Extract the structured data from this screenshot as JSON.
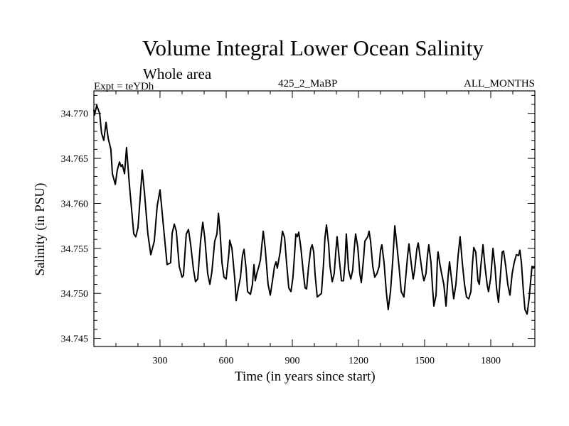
{
  "chart_data": {
    "type": "line",
    "title": "Volume Integral Lower Ocean Salinity",
    "subtitle": "Whole area",
    "annotations": {
      "left": "Expt = teYDh",
      "center": "425_2_MaBP",
      "right": "ALL_MONTHS"
    },
    "xlabel": "Time (in years since start)",
    "ylabel": "Salinity (in PSU)",
    "xlim": [
      0,
      2000
    ],
    "ylim": [
      34.7441,
      34.7725
    ],
    "xticks": [
      300,
      600,
      900,
      1200,
      1500,
      1800
    ],
    "xtick_labels": [
      "300",
      "600",
      "900",
      "1200",
      "1500",
      "1800"
    ],
    "yticks": [
      34.745,
      34.75,
      34.755,
      34.76,
      34.765,
      34.77
    ],
    "ytick_labels": [
      "34.745",
      "34.750",
      "34.755",
      "34.760",
      "34.765",
      "34.770"
    ],
    "grid": false,
    "legend": "none",
    "series": [
      {
        "name": "Salinity",
        "color": "#000000",
        "x": [
          0,
          3,
          13,
          26,
          35,
          45,
          55,
          65,
          77,
          84,
          97,
          106,
          116,
          123,
          129,
          139,
          148,
          161,
          181,
          190,
          200,
          219,
          229,
          245,
          258,
          274,
          287,
          300,
          316,
          332,
          348,
          355,
          365,
          374,
          387,
          400,
          406,
          419,
          429,
          439,
          452,
          461,
          471,
          484,
          494,
          503,
          516,
          526,
          535,
          548,
          558,
          565,
          571,
          581,
          590,
          600,
          613,
          616,
          626,
          639,
          645,
          655,
          665,
          674,
          681,
          690,
          697,
          710,
          719,
          726,
          732,
          739,
          748,
          755,
          768,
          777,
          790,
          800,
          810,
          819,
          826,
          832,
          839,
          845,
          855,
          865,
          874,
          884,
          894,
          903,
          910,
          916,
          923,
          929,
          939,
          952,
          958,
          965,
          974,
          984,
          990,
          997,
          1003,
          1013,
          1023,
          1032,
          1042,
          1048,
          1055,
          1065,
          1071,
          1081,
          1090,
          1097,
          1103,
          1113,
          1123,
          1132,
          1139,
          1145,
          1155,
          1165,
          1174,
          1181,
          1187,
          1197,
          1206,
          1213,
          1223,
          1229,
          1242,
          1248,
          1255,
          1265,
          1274,
          1284,
          1294,
          1300,
          1306,
          1316,
          1326,
          1335,
          1345,
          1355,
          1365,
          1374,
          1384,
          1394,
          1406,
          1413,
          1423,
          1429,
          1439,
          1448,
          1455,
          1465,
          1471,
          1481,
          1490,
          1497,
          1506,
          1513,
          1519,
          1529,
          1535,
          1542,
          1552,
          1558,
          1561,
          1568,
          1577,
          1587,
          1597,
          1606,
          1613,
          1623,
          1632,
          1642,
          1652,
          1661,
          1671,
          1681,
          1690,
          1700,
          1710,
          1716,
          1723,
          1732,
          1742,
          1748,
          1755,
          1765,
          1774,
          1784,
          1790,
          1800,
          1810,
          1819,
          1826,
          1835,
          1842,
          1852,
          1858,
          1868,
          1877,
          1887,
          1897,
          1906,
          1916,
          1926,
          1932,
          1939,
          1948,
          1955,
          1965,
          1974,
          1981,
          1987,
          1994,
          2000
        ],
        "y": [
          34.7704,
          34.7698,
          34.7709,
          34.77,
          34.7678,
          34.767,
          34.769,
          34.7672,
          34.766,
          34.7633,
          34.7621,
          34.7637,
          34.7646,
          34.7641,
          34.7643,
          34.7633,
          34.7662,
          34.7621,
          34.7566,
          34.7563,
          34.7573,
          34.7637,
          34.7613,
          34.7566,
          34.7543,
          34.7558,
          34.7597,
          34.7615,
          34.7573,
          34.7532,
          34.7534,
          34.7567,
          34.7577,
          34.7569,
          34.753,
          34.7518,
          34.752,
          34.7566,
          34.7571,
          34.7554,
          34.7526,
          34.7513,
          34.7516,
          34.7558,
          34.7579,
          34.7562,
          34.7522,
          34.751,
          34.7524,
          34.7558,
          34.7566,
          34.7589,
          34.7573,
          34.7534,
          34.7518,
          34.7516,
          34.7546,
          34.7559,
          34.755,
          34.7516,
          34.7492,
          34.7506,
          34.7518,
          34.7542,
          34.7549,
          34.7528,
          34.7502,
          34.7499,
          34.751,
          34.7532,
          34.7514,
          34.7522,
          34.753,
          34.7537,
          34.7569,
          34.755,
          34.751,
          34.7498,
          34.7514,
          34.753,
          34.7535,
          34.7528,
          34.7538,
          34.7546,
          34.7569,
          34.7562,
          34.7534,
          34.7506,
          34.7502,
          34.7518,
          34.7543,
          34.7566,
          34.7563,
          34.7568,
          34.755,
          34.7518,
          34.7506,
          34.7505,
          34.753,
          34.755,
          34.7554,
          34.7546,
          34.7522,
          34.7496,
          34.7498,
          34.75,
          34.7534,
          34.7562,
          34.7576,
          34.7554,
          34.753,
          34.7513,
          34.7522,
          34.7546,
          34.7563,
          34.7538,
          34.7514,
          34.7514,
          34.7534,
          34.7566,
          34.7526,
          34.7516,
          34.7526,
          34.755,
          34.7566,
          34.7551,
          34.7522,
          34.7512,
          34.7538,
          34.7558,
          34.7563,
          34.7569,
          34.7558,
          34.753,
          34.7518,
          34.7522,
          34.753,
          34.7548,
          34.7554,
          34.7534,
          34.7502,
          34.7482,
          34.7502,
          34.7534,
          34.7575,
          34.7554,
          34.753,
          34.7502,
          34.7496,
          34.7514,
          34.7542,
          34.7555,
          34.7534,
          34.7516,
          34.7526,
          34.755,
          34.7556,
          34.7538,
          34.7522,
          34.7514,
          34.7522,
          34.7542,
          34.7554,
          34.7534,
          34.751,
          34.7486,
          34.7498,
          34.7538,
          34.7546,
          34.7534,
          34.7522,
          34.751,
          34.7486,
          34.7518,
          34.7535,
          34.7514,
          34.7494,
          34.751,
          34.7542,
          34.7563,
          34.7534,
          34.751,
          34.7496,
          34.7494,
          34.7502,
          34.753,
          34.7551,
          34.7546,
          34.7514,
          34.751,
          34.753,
          34.7554,
          34.753,
          34.7509,
          34.7502,
          34.7518,
          34.755,
          34.753,
          34.7506,
          34.749,
          34.7514,
          34.7546,
          34.7547,
          34.753,
          34.751,
          34.7498,
          34.7522,
          34.7534,
          34.7543,
          34.7542,
          34.7548,
          34.7534,
          34.7502,
          34.7482,
          34.7477,
          34.7494,
          34.7514,
          34.753,
          34.7528,
          34.753
        ]
      }
    ]
  }
}
